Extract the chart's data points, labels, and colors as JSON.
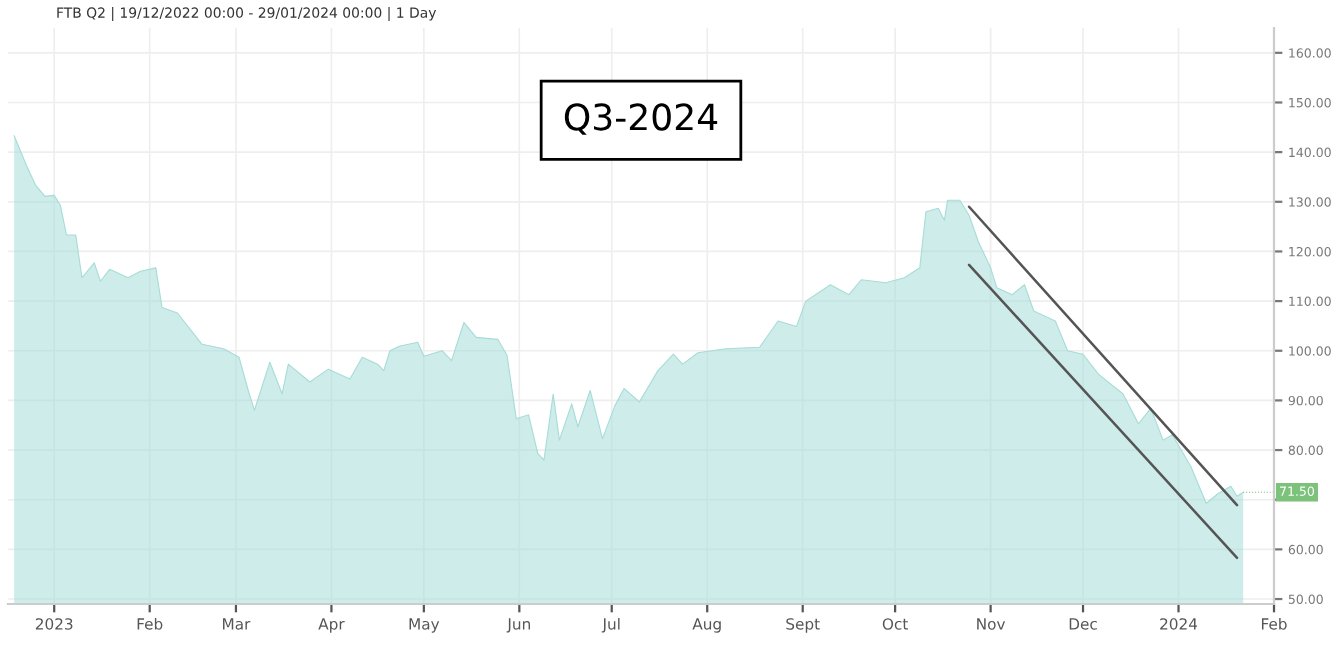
{
  "chart_data": {
    "type": "area",
    "title": "FTB Q2 | 19/12/2022 00:00 - 29/01/2024 00:00 | 1 Day",
    "x": [
      "2022-12-19",
      "2022-12-23",
      "2022-12-26",
      "2022-12-29",
      "2023-01-01",
      "2023-01-03",
      "2023-01-05",
      "2023-01-08",
      "2023-01-10",
      "2023-01-14",
      "2023-01-16",
      "2023-01-19",
      "2023-01-25",
      "2023-01-29",
      "2023-02-03",
      "2023-02-05",
      "2023-02-10",
      "2023-02-18",
      "2023-02-25",
      "2023-03-02",
      "2023-03-05",
      "2023-03-07",
      "2023-03-12",
      "2023-03-16",
      "2023-03-18",
      "2023-03-25",
      "2023-03-31",
      "2023-04-07",
      "2023-04-11",
      "2023-04-16",
      "2023-04-18",
      "2023-04-20",
      "2023-04-23",
      "2023-04-29",
      "2023-05-01",
      "2023-05-07",
      "2023-05-10",
      "2023-05-14",
      "2023-05-18",
      "2023-05-25",
      "2023-05-28",
      "2023-05-31",
      "2023-06-04",
      "2023-06-07",
      "2023-06-09",
      "2023-06-12",
      "2023-06-14",
      "2023-06-18",
      "2023-06-20",
      "2023-06-24",
      "2023-06-28",
      "2023-07-02",
      "2023-07-05",
      "2023-07-10",
      "2023-07-16",
      "2023-07-21",
      "2023-07-24",
      "2023-07-29",
      "2023-08-07",
      "2023-08-18",
      "2023-08-24",
      "2023-08-30",
      "2023-09-02",
      "2023-09-10",
      "2023-09-16",
      "2023-09-20",
      "2023-09-28",
      "2023-10-04",
      "2023-10-09",
      "2023-10-11",
      "2023-10-15",
      "2023-10-17",
      "2023-10-18",
      "2023-10-22",
      "2023-10-25",
      "2023-10-28",
      "2023-11-01",
      "2023-11-03",
      "2023-11-08",
      "2023-11-12",
      "2023-11-15",
      "2023-11-22",
      "2023-11-26",
      "2023-12-01",
      "2023-12-06",
      "2023-12-14",
      "2023-12-19",
      "2023-12-23",
      "2023-12-27",
      "2023-12-30",
      "2024-01-05",
      "2024-01-10",
      "2024-01-14",
      "2024-01-18",
      "2024-01-20",
      "2024-01-22"
    ],
    "series": [
      {
        "color": "#a6dcd8",
        "values": [
          143.3,
          137.3,
          133.3,
          131.1,
          131.3,
          129.3,
          123.3,
          123.3,
          114.7,
          117.7,
          114,
          116.4,
          114.7,
          116,
          116.7,
          108.7,
          107.6,
          101.3,
          100.4,
          98.7,
          92,
          88,
          97.7,
          91.3,
          97.3,
          93.7,
          96.3,
          94.3,
          98.7,
          97.3,
          96,
          100,
          100.9,
          101.7,
          98.9,
          100,
          98,
          105.7,
          102.7,
          102.3,
          99.1,
          86.3,
          87.1,
          79.3,
          78,
          91.3,
          82,
          89.3,
          84.7,
          92,
          82.3,
          88.9,
          92.4,
          89.7,
          96,
          99.3,
          97.3,
          99.6,
          100.4,
          100.7,
          106,
          104.9,
          110,
          113.3,
          111.3,
          114.3,
          113.7,
          114.7,
          116.7,
          128,
          128.7,
          126.3,
          130.3,
          130.3,
          127.3,
          122,
          116.7,
          112.7,
          111.3,
          113.3,
          108,
          106,
          100,
          99.3,
          95.3,
          91.3,
          85.3,
          88.4,
          82,
          83.1,
          76.7,
          69.3,
          71.3,
          72.7,
          70.7,
          71.5
        ]
      },
      {
        "type": "line",
        "color": "#555555",
        "x": [
          "2023-10-25",
          "2024-01-20"
        ],
        "values": [
          129,
          68.9
        ]
      },
      {
        "type": "line",
        "color": "#555555",
        "x": [
          "2023-10-25",
          "2024-01-20"
        ],
        "values": [
          117.3,
          58.3
        ]
      }
    ],
    "annotations": [
      "Q3-2024",
      {
        "text": "71.50",
        "x": "2024-01-22",
        "y": 71.5
      }
    ],
    "xlim": [
      "2022-12-17",
      "2024-02-01"
    ],
    "xticks": [
      {
        "value": "2023-01-01",
        "label": "2023"
      },
      {
        "value": "2023-02-01",
        "label": "Feb"
      },
      {
        "value": "2023-03-01",
        "label": "Mar"
      },
      {
        "value": "2023-04-01",
        "label": "Apr"
      },
      {
        "value": "2023-05-01",
        "label": "May"
      },
      {
        "value": "2023-06-01",
        "label": "Jun"
      },
      {
        "value": "2023-07-01",
        "label": "Jul"
      },
      {
        "value": "2023-08-01",
        "label": "Aug"
      },
      {
        "value": "2023-09-01",
        "label": "Sept"
      },
      {
        "value": "2023-10-01",
        "label": "Oct"
      },
      {
        "value": "2023-11-01",
        "label": "Nov"
      },
      {
        "value": "2023-12-01",
        "label": "Dec"
      },
      {
        "value": "2024-01-01",
        "label": "2024"
      },
      {
        "value": "2024-02-01",
        "label": "Feb"
      }
    ],
    "ylim": [
      49,
      165
    ],
    "yticks": [
      {
        "value": 50,
        "label": "50.00"
      },
      {
        "value": 60,
        "label": "60.00"
      },
      {
        "value": 70,
        "label": null
      },
      {
        "value": 80,
        "label": "80.00"
      },
      {
        "value": 90,
        "label": "90.00"
      },
      {
        "value": 100,
        "label": "100.00"
      },
      {
        "value": 110,
        "label": "110.00"
      },
      {
        "value": 120,
        "label": "120.00"
      },
      {
        "value": 130,
        "label": "130.00"
      },
      {
        "value": 140,
        "label": "140.00"
      },
      {
        "value": 150,
        "label": "150.00"
      },
      {
        "value": 160,
        "label": "160.00"
      }
    ],
    "grid": true,
    "legend": false
  }
}
